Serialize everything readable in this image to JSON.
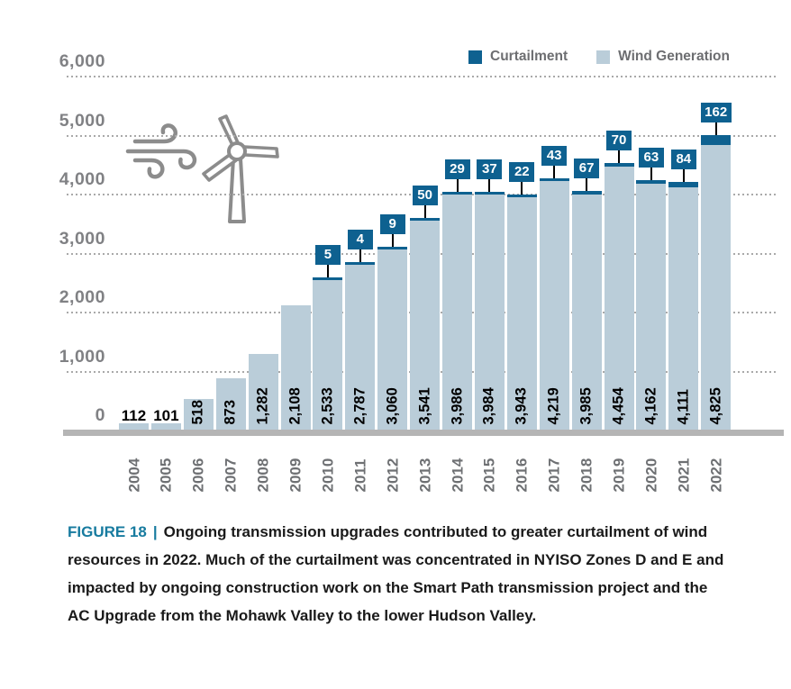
{
  "legend": {
    "items": [
      {
        "label": "Curtailment",
        "color": "#0E6190"
      },
      {
        "label": "Wind Generation",
        "color": "#BACDD9"
      }
    ]
  },
  "chart_data": {
    "type": "bar",
    "stacked": true,
    "categories": [
      "2004",
      "2005",
      "2006",
      "2007",
      "2008",
      "2009",
      "2010",
      "2011",
      "2012",
      "2013",
      "2014",
      "2015",
      "2016",
      "2017",
      "2018",
      "2019",
      "2020",
      "2021",
      "2022"
    ],
    "series": [
      {
        "name": "Wind Generation",
        "color": "#BACDD9",
        "values": [
          112,
          101,
          518,
          873,
          1282,
          2108,
          2533,
          2787,
          3060,
          3541,
          3986,
          3984,
          3943,
          4219,
          3985,
          4454,
          4162,
          4111,
          4825
        ],
        "labels": [
          "112",
          "101",
          "518",
          "873",
          "1,282",
          "2,108",
          "2,533",
          "2,787",
          "3,060",
          "3,541",
          "3,986",
          "3,984",
          "3,943",
          "4,219",
          "3,985",
          "4,454",
          "4,162",
          "4,111",
          "4,825"
        ]
      },
      {
        "name": "Curtailment",
        "color": "#0E6190",
        "values": [
          0,
          0,
          0,
          0,
          0,
          0,
          5,
          4,
          9,
          50,
          29,
          37,
          22,
          43,
          67,
          70,
          63,
          84,
          162
        ],
        "labels": [
          "",
          "",
          "",
          "",
          "",
          "",
          "5",
          "4",
          "9",
          "50",
          "29",
          "37",
          "22",
          "43",
          "67",
          "70",
          "63",
          "84",
          "162"
        ]
      }
    ],
    "ylim": [
      0,
      6000
    ],
    "ytick_labels": [
      "6,000",
      "5,000",
      "4,000",
      "3,000",
      "2,000",
      "1,000",
      "0"
    ],
    "grid": "dotted-horizontal",
    "legend_position": "top-right"
  },
  "illustration": {
    "name": "wind-turbine-with-wind-gusts"
  },
  "caption": {
    "figure_label": "FIGURE 18",
    "separator": "|",
    "text": "Ongoing transmission upgrades contributed to greater curtailment of wind resources in 2022. Much of the curtailment was concentrated in NYISO Zones D and E and impacted by ongoing construction work on the Smart Path transmission project and the AC Upgrade from the Mohawk Valley to the lower Hudson Valley."
  },
  "colors": {
    "wind_bar": "#BACDD9",
    "curtailment": "#0E6190",
    "baseline": "#B5B5B5",
    "gridline": "#A9A9A9",
    "axis_label": "#808184",
    "year_label": "#6E7073",
    "value_label": "#000000",
    "caption_accent": "#177B9F",
    "caption_text": "#1A1A1A",
    "turbine": "#8C8C8C",
    "legend_text": "#6D6E71"
  }
}
